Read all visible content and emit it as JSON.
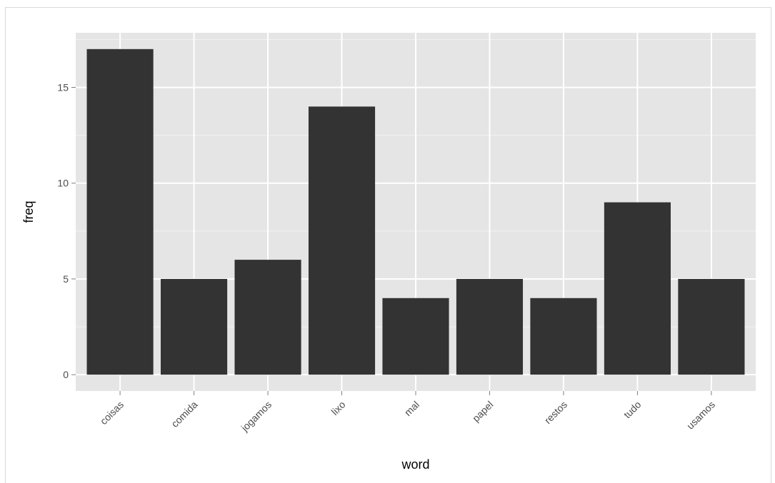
{
  "chart_data": {
    "type": "bar",
    "title": "",
    "xlabel": "word",
    "ylabel": "freq",
    "categories": [
      "coisas",
      "comida",
      "jogamos",
      "lixo",
      "mal",
      "papel",
      "restos",
      "tudo",
      "usamos"
    ],
    "values": [
      17,
      5,
      6,
      14,
      4,
      5,
      4,
      9,
      5
    ],
    "ylim": [
      -0.85,
      17.85
    ],
    "yticks": [
      0,
      5,
      10,
      15
    ],
    "ytick_labels": [
      "0",
      "5",
      "10",
      "15"
    ],
    "grid": true,
    "legend": "none",
    "colors": {
      "bar": "#333333",
      "panel_background": "#e5e5e5",
      "grid_major": "#ffffff",
      "grid_minor": "#f2f2f2",
      "tick": "#7f7f7f",
      "tick_label": "#4d4d4d"
    }
  }
}
